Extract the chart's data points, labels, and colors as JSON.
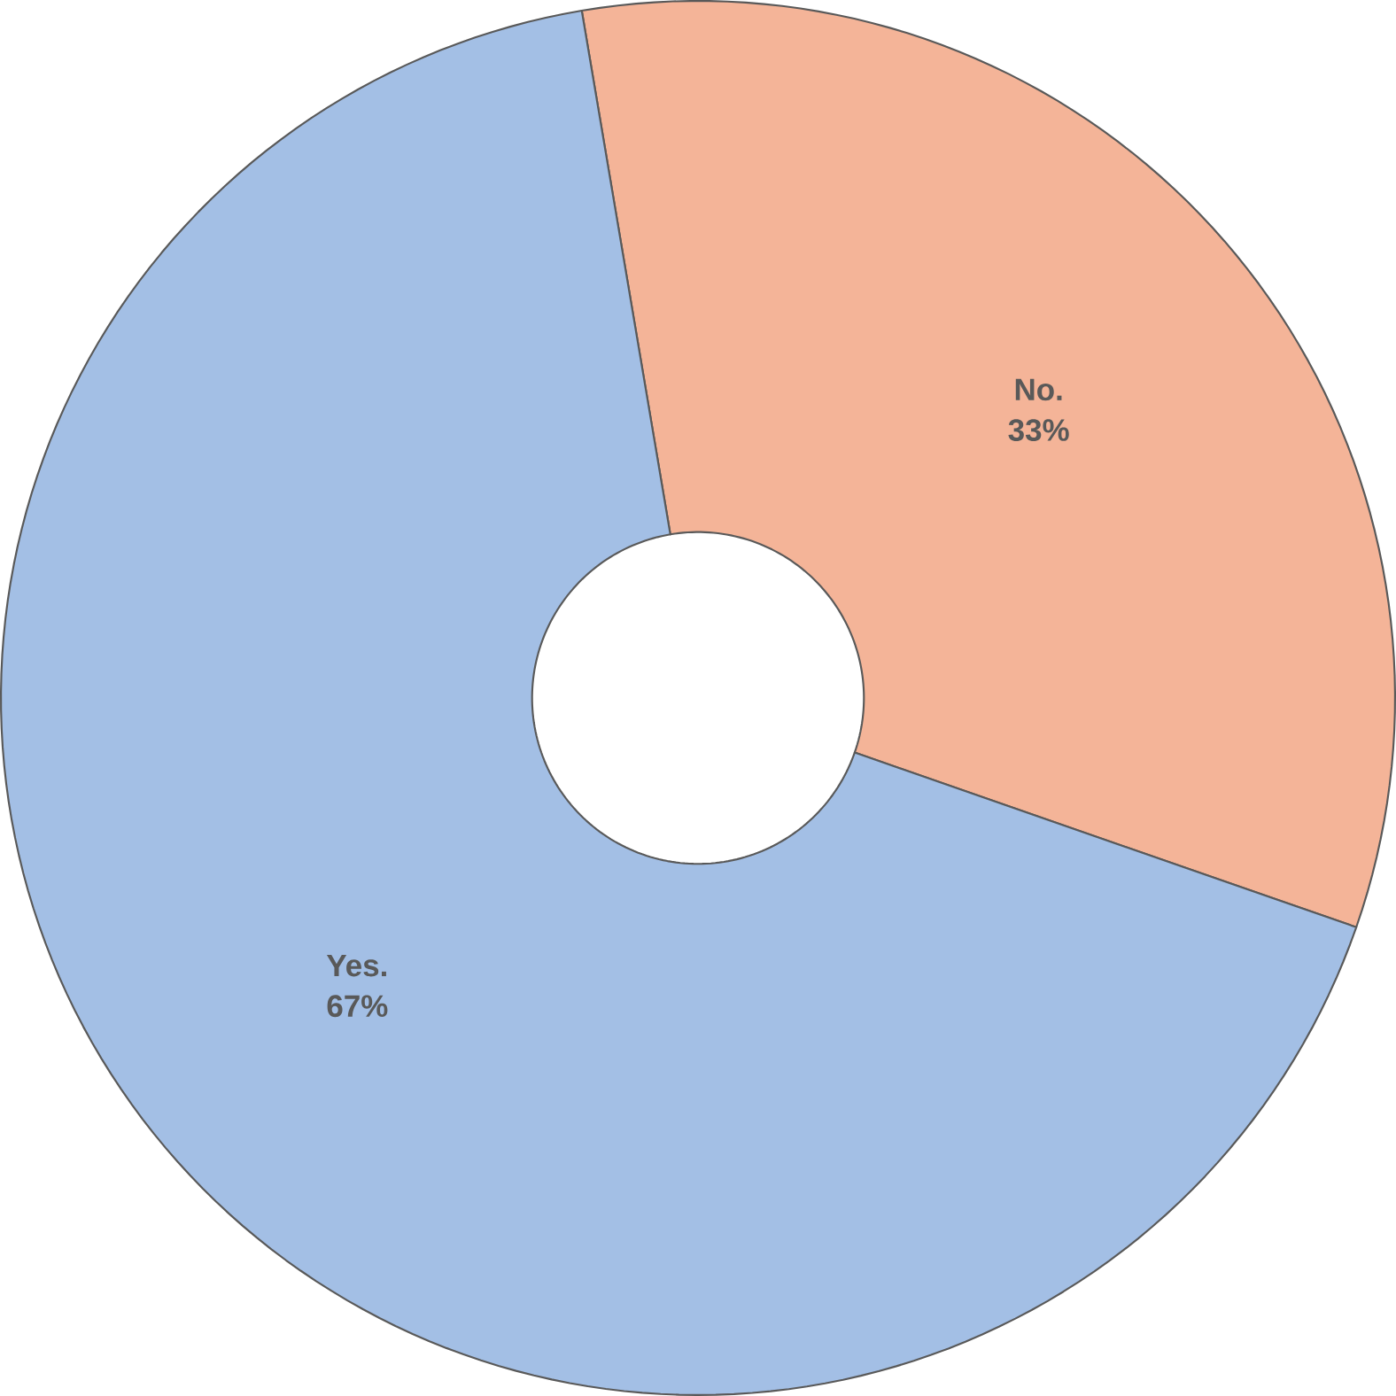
{
  "chart_data": {
    "type": "donut",
    "categories": [
      "No.",
      "Yes."
    ],
    "values": [
      33,
      67
    ],
    "value_labels": [
      "33%",
      "67%"
    ],
    "colors": [
      "#f4b498",
      "#a3bfe5"
    ]
  }
}
